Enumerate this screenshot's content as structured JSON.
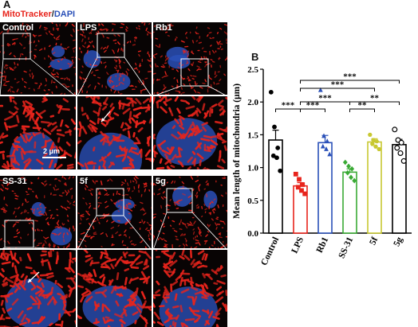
{
  "figure": {
    "panel_a_letter": "A",
    "panel_b_letter": "B",
    "stain_red": "MitoTracker",
    "stain_sep": "/",
    "stain_blue": "DAPI",
    "scale_bar_label": "2 μm",
    "colors": {
      "red_stain": "#e8241c",
      "blue_stain": "#2a50b8",
      "grid_bg": "#080404"
    },
    "tiles_top": [
      {
        "label": "Control"
      },
      {
        "label": "LPS"
      },
      {
        "label": "Rb1"
      }
    ],
    "tiles_bottom": [
      {
        "label": "SS-31"
      },
      {
        "label": "5f"
      },
      {
        "label": "5g"
      }
    ]
  },
  "chart_data": {
    "type": "bar",
    "ylabel": "Mean length of mitochondria (μm)",
    "ylim": [
      0,
      2.5
    ],
    "yticks": [
      "0.0",
      "0.5",
      "1.0",
      "1.5",
      "2.0",
      "2.5"
    ],
    "categories": [
      "Control",
      "LPS",
      "Rb1",
      "SS-31",
      "5f",
      "5g"
    ],
    "means": [
      1.42,
      0.72,
      1.38,
      0.93,
      1.39,
      1.35
    ],
    "sem": [
      0.15,
      0.05,
      0.11,
      0.05,
      0.05,
      0.08
    ],
    "bar_colors": [
      "#000000",
      "#e8241c",
      "#2a50b8",
      "#3aaa35",
      "#c8c832",
      "#000000"
    ],
    "markers": [
      "filled-circle",
      "filled-square",
      "filled-triangle",
      "filled-diamond",
      "filled-hexagon",
      "open-circle"
    ],
    "points": [
      [
        2.15,
        1.62,
        1.3,
        1.18,
        1.15,
        0.95
      ],
      [
        0.9,
        0.82,
        0.74,
        0.7,
        0.65,
        0.6
      ],
      [
        2.18,
        1.48,
        1.4,
        1.32,
        1.28,
        1.2
      ],
      [
        1.08,
        1.02,
        0.98,
        0.92,
        0.85,
        0.8
      ],
      [
        1.5,
        1.42,
        1.4,
        1.36,
        1.32,
        1.28
      ],
      [
        1.58,
        1.42,
        1.38,
        1.3,
        1.22,
        1.1
      ]
    ],
    "significance": [
      {
        "from": 0,
        "to": 1,
        "label": "***"
      },
      {
        "from": 1,
        "to": 2,
        "label": "***"
      },
      {
        "from": 1,
        "to": 3,
        "label": "***"
      },
      {
        "from": 1,
        "to": 4,
        "label": "***"
      },
      {
        "from": 1,
        "to": 5,
        "label": "***"
      },
      {
        "from": 3,
        "to": 4,
        "label": "**"
      },
      {
        "from": 3,
        "to": 5,
        "label": "**"
      }
    ]
  }
}
